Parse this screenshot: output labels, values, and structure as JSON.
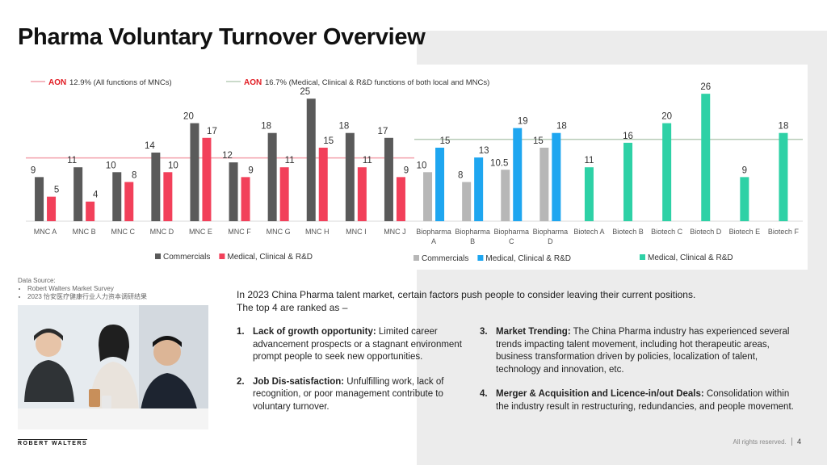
{
  "title": "Pharma Voluntary Turnover Overview",
  "colors": {
    "dark_bar": "#5a5a5a",
    "red_bar": "#f2405a",
    "grey_bar": "#b7b7b7",
    "blue_bar": "#1ea6f0",
    "teal_bar": "#2ed1a6",
    "aon_red": "#e11b22"
  },
  "chart_data": {
    "type": "bar",
    "categories": [
      "MNC A",
      "MNC B",
      "MNC C",
      "MNC D",
      "MNC E",
      "MNC F",
      "MNC G",
      "MNC H",
      "MNC I",
      "MNC J",
      "Biopharma A",
      "Biopharma B",
      "Biopharma C",
      "Biopharma D",
      "Biotech A",
      "Biotech B",
      "Biotech C",
      "Biotech D",
      "Biotech E",
      "Biotech F"
    ],
    "groups": [
      {
        "name": "MNC",
        "categories": [
          "MNC A",
          "MNC B",
          "MNC C",
          "MNC D",
          "MNC E",
          "MNC F",
          "MNC G",
          "MNC H",
          "MNC I",
          "MNC J"
        ],
        "series": [
          {
            "name": "Commercials",
            "color": "#5a5a5a",
            "values": [
              9,
              11,
              10,
              14,
              20,
              12,
              18,
              25,
              18,
              17
            ]
          },
          {
            "name": "Medical, Clinical & R&D",
            "color": "#f2405a",
            "values": [
              5,
              4,
              8,
              10,
              17,
              9,
              11,
              15,
              11,
              9
            ]
          }
        ]
      },
      {
        "name": "Biopharma",
        "categories": [
          "Biopharma A",
          "Biopharma B",
          "Biopharma C",
          "Biopharma D"
        ],
        "series": [
          {
            "name": "Commercials",
            "color": "#b7b7b7",
            "values": [
              10,
              8,
              10.5,
              15
            ]
          },
          {
            "name": "Medical, Clinical & R&D",
            "color": "#1ea6f0",
            "values": [
              15,
              13,
              19,
              18
            ]
          }
        ]
      },
      {
        "name": "Biotech",
        "categories": [
          "Biotech A",
          "Biotech B",
          "Biotech C",
          "Biotech D",
          "Biotech E",
          "Biotech F"
        ],
        "series": [
          {
            "name": "Medical, Clinical & R&D",
            "color": "#2ed1a6",
            "values": [
              11,
              16,
              20,
              26,
              9,
              18
            ]
          }
        ]
      }
    ],
    "reference_lines": [
      {
        "brand": "AON",
        "label": "12.9% (All functions of MNCs)",
        "value": 12.9,
        "color": "#f2a0ab"
      },
      {
        "brand": "AON",
        "label": "16.7% (Medical, Clinical & R&D functions of both local and MNCs)",
        "value": 16.7,
        "color": "#b9cdb9"
      }
    ],
    "legends": [
      {
        "items": [
          {
            "label": "Commercials",
            "color": "#5a5a5a"
          },
          {
            "label": "Medical, Clinical & R&D",
            "color": "#f2405a"
          }
        ]
      },
      {
        "items": [
          {
            "label": "Commercials",
            "color": "#b7b7b7"
          },
          {
            "label": "Medical, Clinical & R&D",
            "color": "#1ea6f0"
          }
        ]
      },
      {
        "items": [
          {
            "label": "Medical, Clinical & R&D",
            "color": "#2ed1a6"
          }
        ]
      }
    ],
    "ylim": [
      0,
      28
    ]
  },
  "data_source": {
    "heading": "Data Source:",
    "items": [
      "Robert Walters Market Survey",
      "2023 怡安医疗健康行业人力资本调研结果"
    ]
  },
  "intro": {
    "line1": "In 2023 China Pharma talent market, certain factors push people to consider leaving their current positions.",
    "line2": "The top 4 are ranked as –"
  },
  "reasons_left": [
    {
      "num": "1.",
      "label": "Lack of growth opportunity:",
      "text": " Limited career advancement prospects or a stagnant environment prompt people to seek new opportunities."
    },
    {
      "num": "2.",
      "label": "Job Dis-satisfaction:",
      "text": " Unfulfilling work, lack of recognition, or poor management contribute to voluntary turnover."
    }
  ],
  "reasons_right": [
    {
      "num": "3.",
      "label": "Market Trending:",
      "text": " The China Pharma industry has experienced several trends impacting talent movement, including hot therapeutic areas, business transformation driven by policies, localization of talent, technology and innovation, etc."
    },
    {
      "num": "4.",
      "label": "Merger & Acquisition and Licence-in/out Deals:",
      "text": " Consolidation within the industry result in restructuring, redundancies, and people movement."
    }
  ],
  "logo": "ROBERT WALTERS",
  "footer": {
    "rights": "All rights reserved.",
    "page": "4"
  }
}
